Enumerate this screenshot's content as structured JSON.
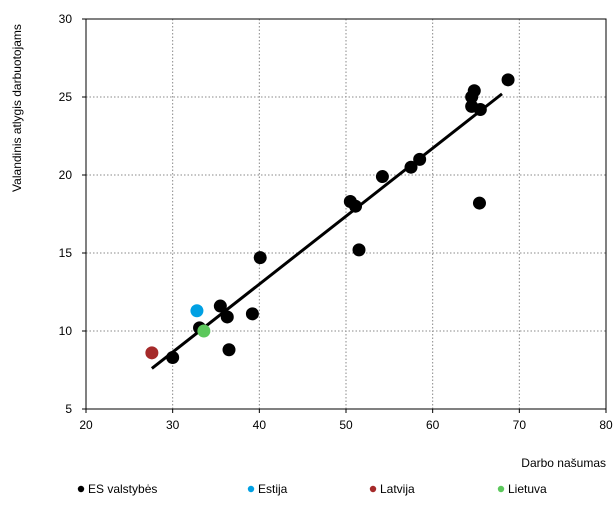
{
  "chart_data": {
    "type": "scatter",
    "xlabel": "Darbo našumas",
    "ylabel": "Valandinis atlygis darbuotojams",
    "xlim": [
      20,
      80
    ],
    "ylim": [
      5,
      30
    ],
    "x_ticks": [
      20,
      30,
      40,
      50,
      60,
      70,
      80
    ],
    "y_ticks": [
      5,
      10,
      15,
      20,
      25,
      30
    ],
    "grid": true,
    "legend_position": "bottom",
    "series": [
      {
        "name": "ES valstybės",
        "color": "#000000",
        "points": [
          [
            30.0,
            8.3
          ],
          [
            33.1,
            10.2
          ],
          [
            35.5,
            11.6
          ],
          [
            36.3,
            10.9
          ],
          [
            36.5,
            8.8
          ],
          [
            39.2,
            11.1
          ],
          [
            40.1,
            14.7
          ],
          [
            50.5,
            18.3
          ],
          [
            51.1,
            18.0
          ],
          [
            51.5,
            15.2
          ],
          [
            54.2,
            19.9
          ],
          [
            57.5,
            20.5
          ],
          [
            58.5,
            21.0
          ],
          [
            64.5,
            24.4
          ],
          [
            64.5,
            25.0
          ],
          [
            64.8,
            25.4
          ],
          [
            65.5,
            24.2
          ],
          [
            65.4,
            18.2
          ],
          [
            68.7,
            26.1
          ]
        ]
      },
      {
        "name": "Estija",
        "color": "#00a0e3",
        "points": [
          [
            32.8,
            11.3
          ]
        ]
      },
      {
        "name": "Latvija",
        "color": "#a52a2a",
        "points": [
          [
            27.6,
            8.6
          ]
        ]
      },
      {
        "name": "Lietuva",
        "color": "#5cc85c",
        "points": [
          [
            33.6,
            10.0
          ]
        ]
      }
    ],
    "trendline": {
      "color": "#000000",
      "points": [
        [
          27.6,
          7.6
        ],
        [
          68.0,
          25.2
        ]
      ]
    }
  }
}
